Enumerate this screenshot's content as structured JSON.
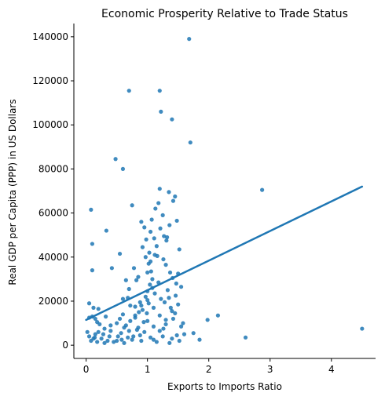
{
  "chart_data": {
    "type": "scatter",
    "title": "Economic Prosperity Relative to Trade Status",
    "xlabel": "Exports to Imports Ratio",
    "ylabel": "Real GDP per Capita (PPP) in US Dollars",
    "xlim": [
      -0.2,
      4.72
    ],
    "ylim": [
      -6000,
      146000
    ],
    "x_ticks": [
      0,
      1,
      2,
      3,
      4
    ],
    "x_tick_labels": [
      "0",
      "1",
      "2",
      "3",
      "4"
    ],
    "y_ticks": [
      0,
      20000,
      40000,
      60000,
      80000,
      100000,
      120000,
      140000
    ],
    "y_tick_labels": [
      "0",
      "20000",
      "40000",
      "60000",
      "80000",
      "100000",
      "120000",
      "140000"
    ],
    "grid": false,
    "point_color": "#1f77b4",
    "regression_line": {
      "x": [
        0,
        4.5
      ],
      "y": [
        11500,
        72000
      ],
      "color": "#1f77b4"
    },
    "points": [
      [
        0.05,
        19000
      ],
      [
        0.08,
        61500
      ],
      [
        0.1,
        46000
      ],
      [
        0.1,
        34000
      ],
      [
        0.12,
        17000
      ],
      [
        0.15,
        12000
      ],
      [
        0.2,
        16500
      ],
      [
        0.05,
        12500
      ],
      [
        0.1,
        13000
      ],
      [
        0.02,
        6000
      ],
      [
        0.05,
        4000
      ],
      [
        0.08,
        2000
      ],
      [
        0.12,
        3000
      ],
      [
        0.15,
        5000
      ],
      [
        0.18,
        1500
      ],
      [
        0.2,
        6000
      ],
      [
        0.25,
        3000
      ],
      [
        0.28,
        5000
      ],
      [
        0.3,
        1000
      ],
      [
        0.32,
        13000
      ],
      [
        0.33,
        52000
      ],
      [
        0.35,
        2000
      ],
      [
        0.38,
        4000
      ],
      [
        0.4,
        6500
      ],
      [
        0.42,
        35000
      ],
      [
        0.45,
        1500
      ],
      [
        0.48,
        84500
      ],
      [
        0.5,
        10000
      ],
      [
        0.52,
        4000
      ],
      [
        0.55,
        41500
      ],
      [
        0.58,
        2500
      ],
      [
        0.6,
        80000
      ],
      [
        0.62,
        8000
      ],
      [
        0.65,
        29500
      ],
      [
        0.68,
        21500
      ],
      [
        0.7,
        115500
      ],
      [
        0.72,
        18000
      ],
      [
        0.75,
        63500
      ],
      [
        0.78,
        35000
      ],
      [
        0.8,
        17500
      ],
      [
        0.82,
        29500
      ],
      [
        0.85,
        31000
      ],
      [
        0.88,
        19500
      ],
      [
        0.9,
        56000
      ],
      [
        0.92,
        44500
      ],
      [
        0.95,
        53500
      ],
      [
        0.97,
        40000
      ],
      [
        0.98,
        48000
      ],
      [
        1.0,
        33000
      ],
      [
        1.0,
        24500
      ],
      [
        1.02,
        37000
      ],
      [
        1.03,
        42000
      ],
      [
        1.05,
        51500
      ],
      [
        1.05,
        38000
      ],
      [
        1.07,
        57000
      ],
      [
        1.08,
        30000
      ],
      [
        1.1,
        17000
      ],
      [
        1.12,
        41000
      ],
      [
        1.13,
        62000
      ],
      [
        1.15,
        45000
      ],
      [
        1.18,
        64500
      ],
      [
        1.2,
        71000
      ],
      [
        1.2,
        115500
      ],
      [
        1.22,
        106000
      ],
      [
        1.25,
        59000
      ],
      [
        1.27,
        49500
      ],
      [
        1.3,
        36500
      ],
      [
        1.32,
        49000
      ],
      [
        1.35,
        69500
      ],
      [
        1.37,
        33000
      ],
      [
        1.4,
        102500
      ],
      [
        1.42,
        65500
      ],
      [
        1.45,
        67500
      ],
      [
        1.48,
        56500
      ],
      [
        1.5,
        32500
      ],
      [
        1.52,
        43500
      ],
      [
        1.55,
        26500
      ],
      [
        1.68,
        139000
      ],
      [
        1.7,
        92000
      ],
      [
        1.58,
        10000
      ],
      [
        1.6,
        5000
      ],
      [
        1.75,
        5500
      ],
      [
        1.85,
        2500
      ],
      [
        1.98,
        11500
      ],
      [
        2.15,
        13500
      ],
      [
        2.6,
        3500
      ],
      [
        2.87,
        70500
      ],
      [
        4.5,
        7500
      ],
      [
        0.9,
        2000
      ],
      [
        0.95,
        6000
      ],
      [
        1.0,
        11000
      ],
      [
        1.05,
        3500
      ],
      [
        1.1,
        8500
      ],
      [
        1.15,
        1500
      ],
      [
        1.2,
        13500
      ],
      [
        1.25,
        4000
      ],
      [
        1.3,
        9500
      ],
      [
        1.35,
        21500
      ],
      [
        1.4,
        3000
      ],
      [
        1.45,
        14500
      ],
      [
        0.55,
        12000
      ],
      [
        0.6,
        14000
      ],
      [
        0.65,
        9000
      ],
      [
        0.7,
        6500
      ],
      [
        0.75,
        2500
      ],
      [
        0.8,
        12500
      ],
      [
        0.85,
        8000
      ],
      [
        0.88,
        4500
      ],
      [
        0.92,
        16000
      ],
      [
        0.97,
        22000
      ],
      [
        1.02,
        19000
      ],
      [
        1.08,
        26000
      ],
      [
        1.12,
        23500
      ],
      [
        1.18,
        28500
      ],
      [
        1.22,
        21000
      ],
      [
        1.28,
        19500
      ],
      [
        1.33,
        25000
      ],
      [
        1.38,
        17000
      ],
      [
        1.42,
        12000
      ],
      [
        1.47,
        28000
      ],
      [
        0.5,
        2000
      ],
      [
        0.57,
        5500
      ],
      [
        0.62,
        1000
      ],
      [
        0.68,
        3500
      ],
      [
        0.72,
        11000
      ],
      [
        0.77,
        4000
      ],
      [
        0.83,
        7000
      ],
      [
        0.86,
        15000
      ],
      [
        0.94,
        10500
      ],
      [
        0.99,
        14500
      ],
      [
        1.04,
        27500
      ],
      [
        1.06,
        33500
      ],
      [
        1.11,
        48500
      ],
      [
        1.16,
        40500
      ],
      [
        1.21,
        53000
      ],
      [
        1.26,
        39000
      ],
      [
        1.31,
        47500
      ],
      [
        1.36,
        54500
      ],
      [
        1.41,
        30500
      ],
      [
        1.46,
        22500
      ],
      [
        0.6,
        21000
      ],
      [
        0.7,
        25500
      ],
      [
        0.8,
        13500
      ],
      [
        0.9,
        18000
      ],
      [
        1.0,
        20500
      ],
      [
        1.1,
        2500
      ],
      [
        1.2,
        6500
      ],
      [
        1.3,
        11500
      ],
      [
        1.4,
        15500
      ],
      [
        1.5,
        18500
      ],
      [
        0.4,
        9000
      ],
      [
        0.3,
        7500
      ],
      [
        0.22,
        9500
      ],
      [
        0.18,
        10500
      ],
      [
        0.14,
        3500
      ],
      [
        1.52,
        2000
      ],
      [
        1.55,
        8500
      ],
      [
        1.48,
        4500
      ],
      [
        1.36,
        1000
      ],
      [
        1.26,
        7500
      ]
    ]
  }
}
